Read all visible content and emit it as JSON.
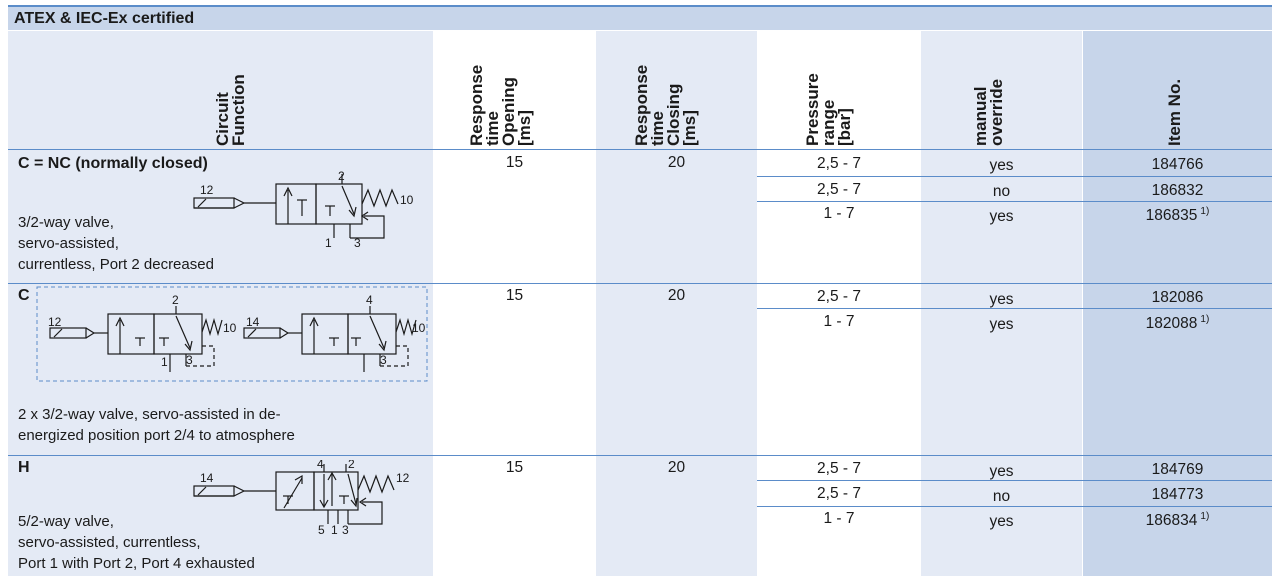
{
  "title": "ATEX & IEC-Ex certified",
  "headers": {
    "circuit_function": "Circuit\nFunction",
    "response_opening": "Response\ntime\nOpening\n[ms]",
    "response_closing": "Response\ntime\nClosing\n[ms]",
    "pressure_range": "Pressure\nrange\n[bar]",
    "manual_override": "manual\noverride",
    "item_no": "Item No."
  },
  "sections": [
    {
      "code": "C = NC (normally closed)",
      "description": [
        "3/2-way valve,",
        "servo-assisted,",
        "currentless, Port 2 decreased"
      ],
      "symbol_labels": [
        "12",
        "2",
        "10",
        "1",
        "3"
      ],
      "opening": "15",
      "closing": "20",
      "rows": [
        {
          "pressure": "2,5 - 7",
          "override": "yes",
          "item": "184766",
          "note": ""
        },
        {
          "pressure": "2,5 - 7",
          "override": "no",
          "item": "186832",
          "note": ""
        },
        {
          "pressure": "1 - 7",
          "override": "yes",
          "item": "186835",
          "note": "1)"
        }
      ]
    },
    {
      "code": "C",
      "description": [
        "2 x 3/2-way valve, servo-assisted in de-",
        "energized position port 2/4 to atmosphere"
      ],
      "symbol_labels": [
        "12",
        "2",
        "10",
        "1",
        "3",
        "14",
        "4",
        "10",
        "3"
      ],
      "opening": "15",
      "closing": "20",
      "rows": [
        {
          "pressure": "2,5 - 7",
          "override": "yes",
          "item": "182086",
          "note": ""
        },
        {
          "pressure": "1 - 7",
          "override": "yes",
          "item": "182088",
          "note": "1)"
        }
      ]
    },
    {
      "code": "H",
      "description": [
        "5/2-way valve,",
        "servo-assisted, currentless,",
        "Port 1 with Port 2, Port 4 exhausted"
      ],
      "symbol_labels": [
        "14",
        "4",
        "2",
        "12",
        "5",
        "1",
        "3"
      ],
      "opening": "15",
      "closing": "20",
      "rows": [
        {
          "pressure": "2,5 - 7",
          "override": "yes",
          "item": "184769",
          "note": ""
        },
        {
          "pressure": "2,5 - 7",
          "override": "no",
          "item": "184773",
          "note": ""
        },
        {
          "pressure": "1 - 7",
          "override": "yes",
          "item": "186834",
          "note": "1)"
        }
      ]
    }
  ],
  "colors": {
    "header_blue": "#c7d5ea",
    "row_shade": "#e4eaf5",
    "rule_blue": "#5b8cc9"
  }
}
